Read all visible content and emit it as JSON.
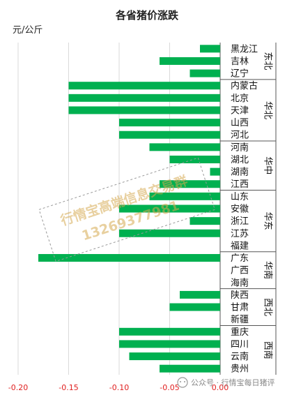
{
  "chart_data": {
    "type": "bar",
    "orientation": "horizontal",
    "title": "各省猪价涨跌",
    "unit_label": "元/公斤",
    "bar_color": "#00b050",
    "tick_color": "#e02020",
    "xlim": [
      -0.2,
      0
    ],
    "xticks": [
      "-0.20",
      "-0.15",
      "-0.10",
      "-0.05",
      "0.00"
    ],
    "grid": "vertical",
    "groups": [
      {
        "region": "东北",
        "items": [
          {
            "name": "黑龙江",
            "value": -0.02
          },
          {
            "name": "吉林",
            "value": -0.06
          },
          {
            "name": "辽宁",
            "value": -0.03
          }
        ]
      },
      {
        "region": "华北",
        "items": [
          {
            "name": "内蒙古",
            "value": -0.15
          },
          {
            "name": "北京",
            "value": -0.15
          },
          {
            "name": "天津",
            "value": -0.15
          },
          {
            "name": "山西",
            "value": -0.1
          },
          {
            "name": "河北",
            "value": -0.1
          }
        ]
      },
      {
        "region": "华中",
        "items": [
          {
            "name": "河南",
            "value": -0.07
          },
          {
            "name": "湖北",
            "value": -0.05
          },
          {
            "name": "湖南",
            "value": -0.01
          },
          {
            "name": "江西",
            "value": -0.06
          }
        ]
      },
      {
        "region": "华东",
        "items": [
          {
            "name": "山东",
            "value": -0.07
          },
          {
            "name": "安徽",
            "value": -0.1
          },
          {
            "name": "浙江",
            "value": -0.03
          },
          {
            "name": "江苏",
            "value": -0.1
          },
          {
            "name": "福建",
            "value": 0.0
          }
        ]
      },
      {
        "region": "华南",
        "items": [
          {
            "name": "广东",
            "value": -0.18
          },
          {
            "name": "广西",
            "value": 0.0
          },
          {
            "name": "海南",
            "value": 0.0
          }
        ]
      },
      {
        "region": "西北",
        "items": [
          {
            "name": "陕西",
            "value": -0.04
          },
          {
            "name": "甘肃",
            "value": -0.05
          },
          {
            "name": "新疆",
            "value": 0.0
          }
        ]
      },
      {
        "region": "西南",
        "items": [
          {
            "name": "重庆",
            "value": -0.1
          },
          {
            "name": "四川",
            "value": -0.1
          },
          {
            "name": "云南",
            "value": -0.09
          },
          {
            "name": "贵州",
            "value": -0.06
          }
        ]
      }
    ]
  },
  "watermark": {
    "line1": "行情宝高端信息交易群",
    "line2": "13269377981"
  },
  "footer": {
    "text": "公众号 · 行情宝每日猪评"
  }
}
